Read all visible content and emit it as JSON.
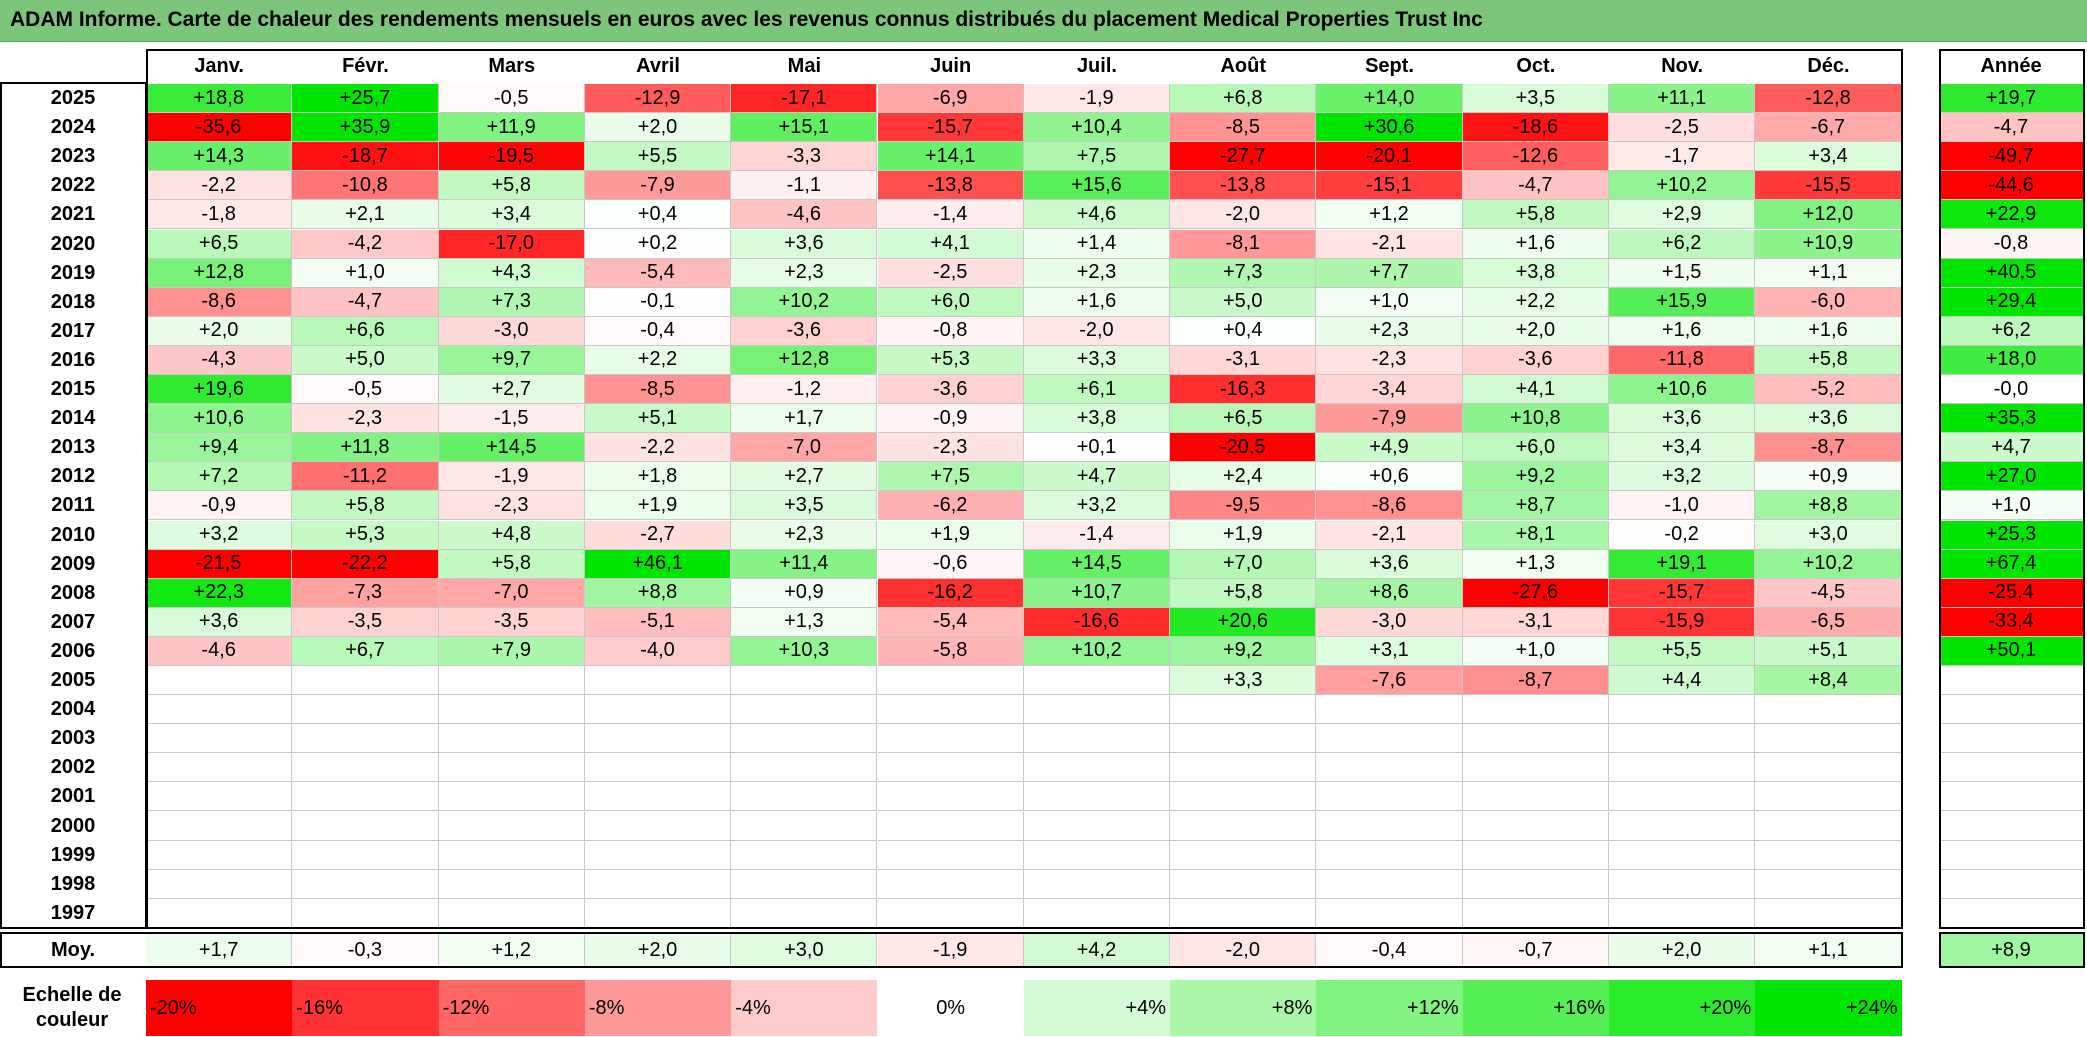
{
  "title": "ADAM Informe. Carte de chaleur des rendements mensuels en euros avec les revenus connus distribués du placement Medical Properties Trust Inc",
  "chart_data": {
    "type": "heatmap",
    "title": "ADAM Informe. Carte de chaleur des rendements mensuels en euros avec les revenus connus distribués du placement Medical Properties Trust Inc",
    "columns": [
      "Janv.",
      "Févr.",
      "Mars",
      "Avril",
      "Mai",
      "Juin",
      "Juil.",
      "Août",
      "Sept.",
      "Oct.",
      "Nov.",
      "Déc."
    ],
    "year_header": "Année",
    "rows": [
      {
        "year": "2025",
        "values": [
          "+18,8",
          "+25,7",
          "-0,5",
          "-12,9",
          "-17,1",
          "-6,9",
          "-1,9",
          "+6,8",
          "+14,0",
          "+3,5",
          "+11,1",
          "-12,8"
        ],
        "annual": "+19,7"
      },
      {
        "year": "2024",
        "values": [
          "-35,6",
          "+35,9",
          "+11,9",
          "+2,0",
          "+15,1",
          "-15,7",
          "+10,4",
          "-8,5",
          "+30,6",
          "-18,6",
          "-2,5",
          "-6,7"
        ],
        "annual": "-4,7"
      },
      {
        "year": "2023",
        "values": [
          "+14,3",
          "-18,7",
          "-19,5",
          "+5,5",
          "-3,3",
          "+14,1",
          "+7,5",
          "-27,7",
          "-20,1",
          "-12,6",
          "-1,7",
          "+3,4"
        ],
        "annual": "-49,7"
      },
      {
        "year": "2022",
        "values": [
          "-2,2",
          "-10,8",
          "+5,8",
          "-7,9",
          "-1,1",
          "-13,8",
          "+15,6",
          "-13,8",
          "-15,1",
          "-4,7",
          "+10,2",
          "-15,5"
        ],
        "annual": "-44,6"
      },
      {
        "year": "2021",
        "values": [
          "-1,8",
          "+2,1",
          "+3,4",
          "+0,4",
          "-4,6",
          "-1,4",
          "+4,6",
          "-2,0",
          "+1,2",
          "+5,8",
          "+2,9",
          "+12,0"
        ],
        "annual": "+22,9"
      },
      {
        "year": "2020",
        "values": [
          "+6,5",
          "-4,2",
          "-17,0",
          "+0,2",
          "+3,6",
          "+4,1",
          "+1,4",
          "-8,1",
          "-2,1",
          "+1,6",
          "+6,2",
          "+10,9"
        ],
        "annual": "-0,8"
      },
      {
        "year": "2019",
        "values": [
          "+12,8",
          "+1,0",
          "+4,3",
          "-5,4",
          "+2,3",
          "-2,5",
          "+2,3",
          "+7,3",
          "+7,7",
          "+3,8",
          "+1,5",
          "+1,1"
        ],
        "annual": "+40,5"
      },
      {
        "year": "2018",
        "values": [
          "-8,6",
          "-4,7",
          "+7,3",
          "-0,1",
          "+10,2",
          "+6,0",
          "+1,6",
          "+5,0",
          "+1,0",
          "+2,2",
          "+15,9",
          "-6,0"
        ],
        "annual": "+29,4"
      },
      {
        "year": "2017",
        "values": [
          "+2,0",
          "+6,6",
          "-3,0",
          "-0,4",
          "-3,6",
          "-0,8",
          "-2,0",
          "+0,4",
          "+2,3",
          "+2,0",
          "+1,6",
          "+1,6"
        ],
        "annual": "+6,2"
      },
      {
        "year": "2016",
        "values": [
          "-4,3",
          "+5,0",
          "+9,7",
          "+2,2",
          "+12,8",
          "+5,3",
          "+3,3",
          "-3,1",
          "-2,3",
          "-3,6",
          "-11,8",
          "+5,8"
        ],
        "annual": "+18,0"
      },
      {
        "year": "2015",
        "values": [
          "+19,6",
          "-0,5",
          "+2,7",
          "-8,5",
          "-1,2",
          "-3,6",
          "+6,1",
          "-16,3",
          "-3,4",
          "+4,1",
          "+10,6",
          "-5,2"
        ],
        "annual": "-0,0"
      },
      {
        "year": "2014",
        "values": [
          "+10,6",
          "-2,3",
          "-1,5",
          "+5,1",
          "+1,7",
          "-0,9",
          "+3,8",
          "+6,5",
          "-7,9",
          "+10,8",
          "+3,6",
          "+3,6"
        ],
        "annual": "+35,3"
      },
      {
        "year": "2013",
        "values": [
          "+9,4",
          "+11,8",
          "+14,5",
          "-2,2",
          "-7,0",
          "-2,3",
          "+0,1",
          "-20,5",
          "+4,9",
          "+6,0",
          "+3,4",
          "-8,7"
        ],
        "annual": "+4,7"
      },
      {
        "year": "2012",
        "values": [
          "+7,2",
          "-11,2",
          "-1,9",
          "+1,8",
          "+2,7",
          "+7,5",
          "+4,7",
          "+2,4",
          "+0,6",
          "+9,2",
          "+3,2",
          "+0,9"
        ],
        "annual": "+27,0"
      },
      {
        "year": "2011",
        "values": [
          "-0,9",
          "+5,8",
          "-2,3",
          "+1,9",
          "+3,5",
          "-6,2",
          "+3,2",
          "-9,5",
          "-8,6",
          "+8,7",
          "-1,0",
          "+8,8"
        ],
        "annual": "+1,0"
      },
      {
        "year": "2010",
        "values": [
          "+3,2",
          "+5,3",
          "+4,8",
          "-2,7",
          "+2,3",
          "+1,9",
          "-1,4",
          "+1,9",
          "-2,1",
          "+8,1",
          "-0,2",
          "+3,0"
        ],
        "annual": "+25,3"
      },
      {
        "year": "2009",
        "values": [
          "-21,5",
          "-22,2",
          "+5,8",
          "+46,1",
          "+11,4",
          "-0,6",
          "+14,5",
          "+7,0",
          "+3,6",
          "+1,3",
          "+19,1",
          "+10,2"
        ],
        "annual": "+67,4"
      },
      {
        "year": "2008",
        "values": [
          "+22,3",
          "-7,3",
          "-7,0",
          "+8,8",
          "+0,9",
          "-16,2",
          "+10,7",
          "+5,8",
          "+8,6",
          "-27,6",
          "-15,7",
          "-4,5"
        ],
        "annual": "-25,4"
      },
      {
        "year": "2007",
        "values": [
          "+3,6",
          "-3,5",
          "-3,5",
          "-5,1",
          "+1,3",
          "-5,4",
          "-16,6",
          "+20,6",
          "-3,0",
          "-3,1",
          "-15,9",
          "-6,5"
        ],
        "annual": "-33,4"
      },
      {
        "year": "2006",
        "values": [
          "-4,6",
          "+6,7",
          "+7,9",
          "-4,0",
          "+10,3",
          "-5,8",
          "+10,2",
          "+9,2",
          "+3,1",
          "+1,0",
          "+5,5",
          "+5,1"
        ],
        "annual": "+50,1"
      },
      {
        "year": "2005",
        "values": [
          "",
          "",
          "",
          "",
          "",
          "",
          "",
          "+3,3",
          "-7,6",
          "-8,7",
          "+4,4",
          "+8,4"
        ],
        "annual": ""
      },
      {
        "year": "2004",
        "values": [
          "",
          "",
          "",
          "",
          "",
          "",
          "",
          "",
          "",
          "",
          "",
          ""
        ],
        "annual": ""
      },
      {
        "year": "2003",
        "values": [
          "",
          "",
          "",
          "",
          "",
          "",
          "",
          "",
          "",
          "",
          "",
          ""
        ],
        "annual": ""
      },
      {
        "year": "2002",
        "values": [
          "",
          "",
          "",
          "",
          "",
          "",
          "",
          "",
          "",
          "",
          "",
          ""
        ],
        "annual": ""
      },
      {
        "year": "2001",
        "values": [
          "",
          "",
          "",
          "",
          "",
          "",
          "",
          "",
          "",
          "",
          "",
          ""
        ],
        "annual": ""
      },
      {
        "year": "2000",
        "values": [
          "",
          "",
          "",
          "",
          "",
          "",
          "",
          "",
          "",
          "",
          "",
          ""
        ],
        "annual": ""
      },
      {
        "year": "1999",
        "values": [
          "",
          "",
          "",
          "",
          "",
          "",
          "",
          "",
          "",
          "",
          "",
          ""
        ],
        "annual": ""
      },
      {
        "year": "1998",
        "values": [
          "",
          "",
          "",
          "",
          "",
          "",
          "",
          "",
          "",
          "",
          "",
          ""
        ],
        "annual": ""
      },
      {
        "year": "1997",
        "values": [
          "",
          "",
          "",
          "",
          "",
          "",
          "",
          "",
          "",
          "",
          "",
          ""
        ],
        "annual": ""
      }
    ],
    "average": {
      "label": "Moy.",
      "values": [
        "+1,7",
        "-0,3",
        "+1,2",
        "+2,0",
        "+3,0",
        "-1,9",
        "+4,2",
        "-2,0",
        "-0,4",
        "-0,7",
        "+2,0",
        "+1,1"
      ],
      "annual": "+8,9"
    },
    "color_scale": {
      "label": "Echelle de couleur",
      "stops": [
        "-20%",
        "-16%",
        "-12%",
        "-8%",
        "-4%",
        "0%",
        "+4%",
        "+8%",
        "+12%",
        "+16%",
        "+20%",
        "+24%"
      ],
      "stop_values": [
        -20,
        -16,
        -12,
        -8,
        -4,
        0,
        4,
        8,
        12,
        16,
        20,
        24
      ],
      "negative_color": "#ff0000",
      "neutral_color": "#ffffff",
      "positive_color": "#00e600"
    }
  }
}
